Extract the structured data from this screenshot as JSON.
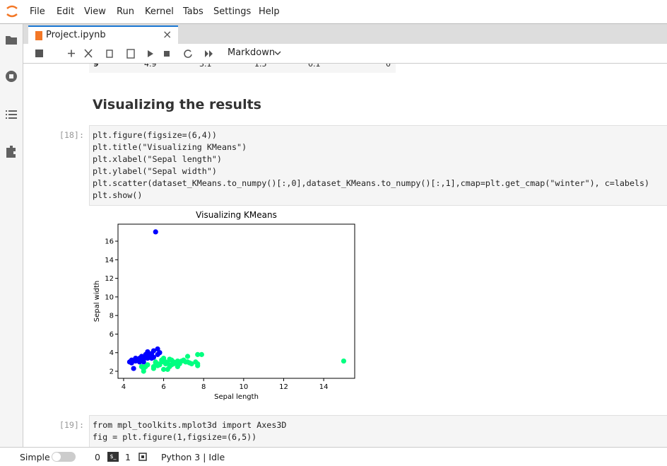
{
  "menu": [
    "File",
    "Edit",
    "View",
    "Run",
    "Kernel",
    "Tabs",
    "Settings",
    "Help"
  ],
  "tab": {
    "title": "Project.ipynb"
  },
  "toolbar": {
    "cell_type": "Markdown"
  },
  "table_row": [
    "9",
    "4.9",
    "3.1",
    "1.5",
    "0.1",
    "0"
  ],
  "heading": "Visualizing the results",
  "cells": [
    {
      "prompt": "[18]:",
      "lines": [
        "plt.figure(figsize=(6,4))",
        "plt.title(\"Visualizing KMeans\")",
        "plt.xlabel(\"Sepal length\")",
        "plt.ylabel(\"Sepal width\")",
        "plt.scatter(dataset_KMeans.to_numpy()[:,0],dataset_KMeans.to_numpy()[:,1],cmap=plt.get_cmap(\"winter\"), c=labels)",
        "plt.show()"
      ]
    },
    {
      "prompt": "[19]:",
      "lines": [
        "from mpl_toolkits.mplot3d import Axes3D",
        "fig = plt.figure(1,figsize=(6,5))"
      ]
    }
  ],
  "chart_data": {
    "type": "scatter",
    "title": "Visualizing KMeans",
    "x_label": "Sepal length",
    "y_label": "Sepal width",
    "xlim": [
      3.72,
      15.55
    ],
    "ylim": [
      1.24,
      17.83
    ],
    "xticks": [
      4,
      6,
      8,
      10,
      12,
      14
    ],
    "yticks": [
      2,
      4,
      6,
      8,
      10,
      12,
      14,
      16
    ],
    "series": [
      {
        "color": "#0000ff",
        "x": [
          4.3,
          4.4,
          4.4,
          4.5,
          4.6,
          4.6,
          4.7,
          4.8,
          4.8,
          4.9,
          4.9,
          5.0,
          5.0,
          5.0,
          5.1,
          5.1,
          5.1,
          5.2,
          5.2,
          5.3,
          5.4,
          5.4,
          5.5,
          5.5,
          5.7,
          5.7,
          5.8,
          5.8,
          5.6,
          5.0,
          4.8,
          5.4
        ],
        "y": [
          3.0,
          2.9,
          3.2,
          2.3,
          3.1,
          3.4,
          3.2,
          3.0,
          3.4,
          3.1,
          3.6,
          3.5,
          3.3,
          3.0,
          3.5,
          3.8,
          3.7,
          3.4,
          4.1,
          3.7,
          3.9,
          3.4,
          4.2,
          3.5,
          4.4,
          3.8,
          4.0,
          4.0,
          17.0,
          2.3,
          3.1,
          3.7
        ]
      },
      {
        "color": "#00ff80",
        "x": [
          4.9,
          5.0,
          5.0,
          5.1,
          5.2,
          5.5,
          5.5,
          5.6,
          5.6,
          5.7,
          5.7,
          5.8,
          5.8,
          5.9,
          5.9,
          6.0,
          6.0,
          6.1,
          6.1,
          6.2,
          6.2,
          6.3,
          6.3,
          6.4,
          6.4,
          6.5,
          6.5,
          6.6,
          6.7,
          6.7,
          6.8,
          6.9,
          7.0,
          7.1,
          7.2,
          7.2,
          7.3,
          7.4,
          7.6,
          7.7,
          7.7,
          7.7,
          7.9,
          15.0
        ],
        "y": [
          2.5,
          2.0,
          2.3,
          2.5,
          2.7,
          2.3,
          2.5,
          2.9,
          3.0,
          2.8,
          2.6,
          2.7,
          2.7,
          3.0,
          3.2,
          2.2,
          3.4,
          2.8,
          3.0,
          2.2,
          2.9,
          2.5,
          3.3,
          3.2,
          2.7,
          2.8,
          3.0,
          2.9,
          3.1,
          2.5,
          2.8,
          3.1,
          3.2,
          3.0,
          3.6,
          3.0,
          2.9,
          2.8,
          3.0,
          2.6,
          3.8,
          2.8,
          3.8,
          3.1
        ]
      }
    ]
  },
  "status": {
    "mode": "Simple",
    "terminals": "0",
    "kernels": "1",
    "kernel": "Python 3 | Idle"
  }
}
